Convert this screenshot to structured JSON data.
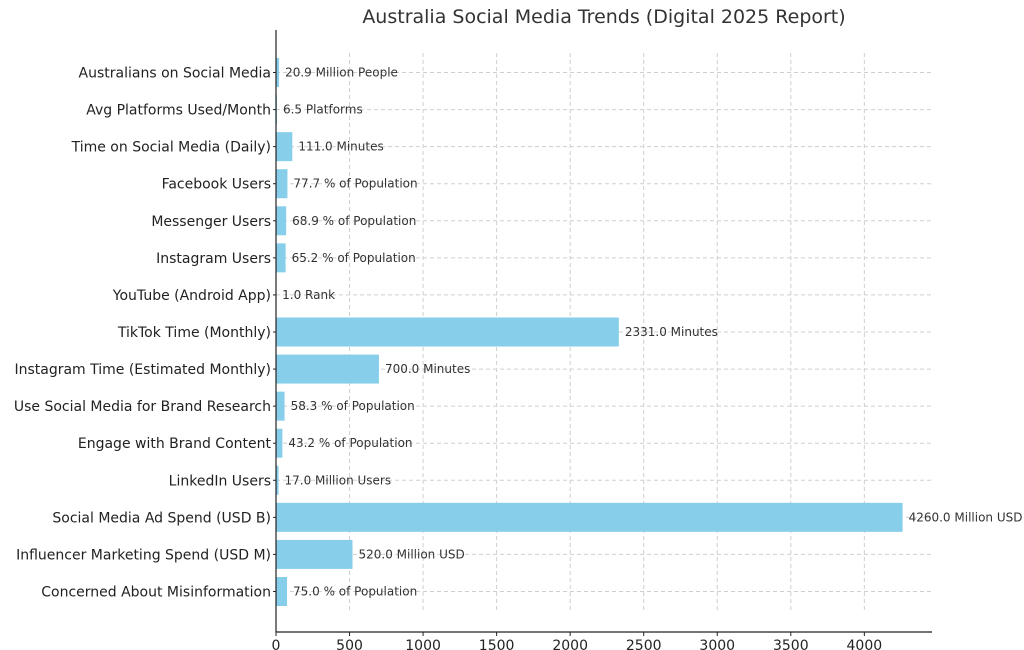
{
  "chart_data": {
    "type": "bar",
    "orientation": "horizontal",
    "title": "Australia Social Media Trends (Digital 2025 Report)",
    "xlabel": "",
    "ylabel": "",
    "xlim": [
      0,
      4460
    ],
    "xticks": [
      0,
      500,
      1000,
      1500,
      2000,
      2500,
      3000,
      3500,
      4000
    ],
    "grid": true,
    "bar_color": "#87ceeb",
    "categories": [
      "Australians on Social Media",
      "Avg Platforms Used/Month",
      "Time on Social Media (Daily)",
      "Facebook Users",
      "Messenger Users",
      "Instagram Users",
      "YouTube (Android App)",
      "TikTok Time (Monthly)",
      "Instagram Time (Estimated Monthly)",
      "Use Social Media for Brand Research",
      "Engage with Brand Content",
      "LinkedIn Users",
      "Social Media Ad Spend (USD B)",
      "Influencer Marketing Spend (USD M)",
      "Concerned About Misinformation"
    ],
    "values": [
      20.9,
      6.5,
      111.0,
      77.7,
      68.9,
      65.2,
      1.0,
      2331.0,
      700.0,
      58.3,
      43.2,
      17.0,
      4260.0,
      520.0,
      75.0
    ],
    "value_labels": [
      "20.9 Million People",
      "6.5 Platforms",
      "111.0 Minutes",
      "77.7 % of Population",
      "68.9 % of Population",
      "65.2 % of Population",
      "1.0 Rank",
      "2331.0 Minutes",
      "700.0 Minutes",
      "58.3 % of Population",
      "43.2 % of Population",
      "17.0 Million Users",
      "4260.0 Million USD",
      "520.0 Million USD",
      "75.0 % of Population"
    ]
  }
}
